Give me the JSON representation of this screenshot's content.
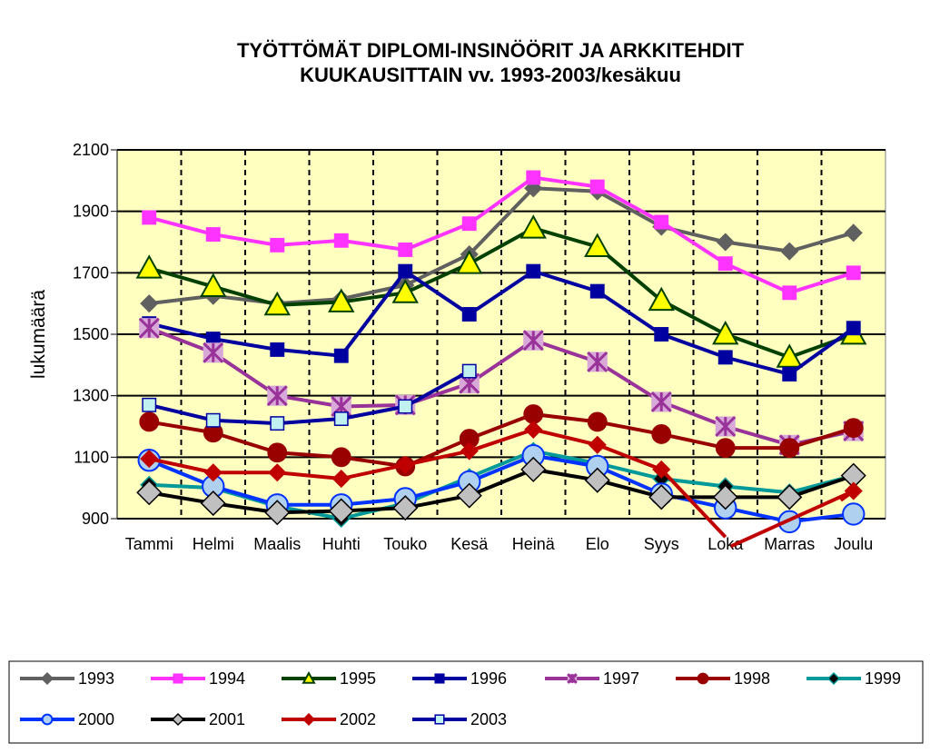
{
  "chart_data": {
    "type": "line",
    "title_lines": [
      "TYÖTTÖMÄT DIPLOMI-INSINÖÖRIT JA ARKKITEHDIT",
      "KUUKAUSITTAIN vv. 1993-2003/kesäkuu"
    ],
    "ylabel": "lukumäärä",
    "xlabel": "",
    "ylim": [
      900,
      2100
    ],
    "yticks": [
      900,
      1100,
      1300,
      1500,
      1700,
      1900,
      2100
    ],
    "grid": "horizontal solid, vertical dashed",
    "legend_position": "bottom",
    "plot_background": "#ffffc0",
    "categories": [
      "Tammi",
      "Helmi",
      "Maalis",
      "Huhti",
      "Touko",
      "Kesä",
      "Heinä",
      "Elo",
      "Syys",
      "Loka",
      "Marras",
      "Joulu"
    ],
    "series": [
      {
        "name": "1993",
        "color": "#606060",
        "marker": "diamond",
        "marker_fill": "#606060",
        "values": [
          1600,
          1625,
          1600,
          1615,
          1660,
          1760,
          1975,
          1965,
          1850,
          1800,
          1770,
          1830
        ]
      },
      {
        "name": "1994",
        "color": "#ff33ff",
        "marker": "square",
        "marker_fill": "#ff33ff",
        "values": [
          1880,
          1825,
          1790,
          1805,
          1775,
          1860,
          2010,
          1980,
          1865,
          1730,
          1635,
          1700
        ]
      },
      {
        "name": "1995",
        "color": "#004000",
        "marker": "triangle",
        "marker_fill": "#ffff00",
        "values": [
          1715,
          1655,
          1595,
          1605,
          1635,
          1730,
          1845,
          1785,
          1610,
          1500,
          1425,
          1500
        ]
      },
      {
        "name": "1996",
        "color": "#0000a0",
        "marker": "square",
        "marker_fill": "#0000a0",
        "values": [
          1535,
          1485,
          1450,
          1430,
          1705,
          1565,
          1705,
          1640,
          1500,
          1425,
          1370,
          1520
        ]
      },
      {
        "name": "1997",
        "color": "#993399",
        "marker": "star-square",
        "marker_fill": "#d8a8d8",
        "values": [
          1520,
          1440,
          1300,
          1265,
          1270,
          1340,
          1480,
          1410,
          1280,
          1200,
          1140,
          1185
        ]
      },
      {
        "name": "1998",
        "color": "#990000",
        "marker": "circle",
        "marker_fill": "#990000",
        "values": [
          1215,
          1180,
          1115,
          1100,
          1070,
          1160,
          1240,
          1215,
          1175,
          1130,
          1130,
          1195
        ]
      },
      {
        "name": "1999",
        "color": "#009999",
        "marker": "diamond",
        "marker_fill": "#000000",
        "values": [
          1010,
          1000,
          940,
          900,
          950,
          1035,
          1120,
          1080,
          1030,
          1005,
          985,
          1040
        ]
      },
      {
        "name": "2000",
        "color": "#0033ff",
        "marker": "circle",
        "marker_fill": "#b0d0f0",
        "values": [
          1090,
          1005,
          945,
          945,
          965,
          1020,
          1105,
          1070,
          980,
          935,
          890,
          915
        ]
      },
      {
        "name": "2001",
        "color": "#000000",
        "marker": "diamond",
        "marker_fill": "#c0c0c0",
        "values": [
          985,
          950,
          920,
          925,
          935,
          975,
          1060,
          1025,
          970,
          970,
          970,
          1040
        ]
      },
      {
        "name": "2002",
        "color": "#c00000",
        "marker": "diamond",
        "marker_fill": "#c00000",
        "values": [
          1095,
          1050,
          1050,
          1030,
          1075,
          1120,
          1190,
          1140,
          1060,
          840,
          null,
          990
        ]
      },
      {
        "name": "2003",
        "color": "#0000a0",
        "marker": "square",
        "marker_fill": "#c0f0f0",
        "values": [
          1270,
          1220,
          1210,
          1225,
          1265,
          1380,
          null,
          null,
          null,
          null,
          null,
          null
        ]
      }
    ]
  }
}
